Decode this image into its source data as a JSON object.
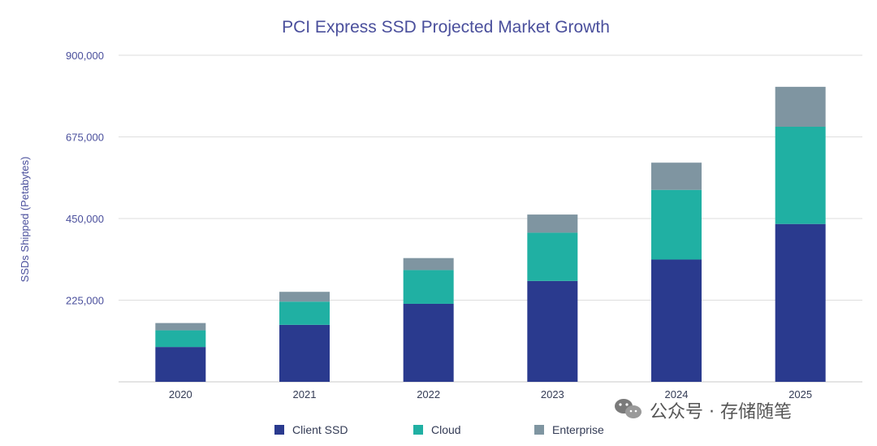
{
  "chart_data": {
    "type": "bar",
    "stacked": true,
    "title": "PCI Express SSD Projected Market Growth",
    "xlabel": "",
    "ylabel": "SSDs Shipped (Petabytes)",
    "ylim": [
      0,
      900000
    ],
    "yticks": [
      225000,
      450000,
      675000,
      900000
    ],
    "ytick_labels": [
      "225,000",
      "450,000",
      "675,000",
      "900,000"
    ],
    "categories": [
      "2020",
      "2021",
      "2022",
      "2023",
      "2024",
      "2025"
    ],
    "series": [
      {
        "name": "Client SSD",
        "color": "#2a3a8e",
        "values": [
          96000,
          157000,
          215000,
          278000,
          337000,
          435000
        ]
      },
      {
        "name": "Cloud",
        "color": "#20b0a3",
        "values": [
          46000,
          64000,
          93000,
          133000,
          192000,
          268000
        ]
      },
      {
        "name": "Enterprise",
        "color": "#7f95a1",
        "values": [
          20000,
          27000,
          33000,
          50000,
          75000,
          110000
        ]
      }
    ],
    "grid": true,
    "legend_position": "bottom-center"
  },
  "watermark": {
    "icon": "wechat-icon",
    "text": "公众号 · 存储随笔"
  }
}
